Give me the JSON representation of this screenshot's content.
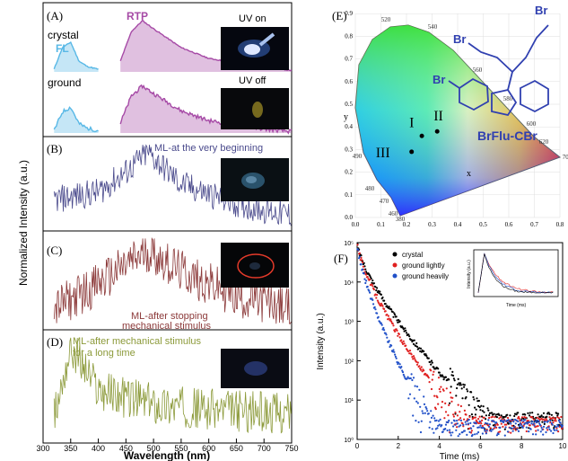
{
  "panels": {
    "A": {
      "letter": "(A)",
      "crystal": "crystal",
      "fl": "FL",
      "rtp": "RTP",
      "ground": "ground",
      "uv_on": "UV on",
      "uv_off": "UV off"
    },
    "B": {
      "letter": "(B)",
      "caption": "ML-at the very beginning"
    },
    "C": {
      "letter": "(C)",
      "caption1": "ML-after stopping",
      "caption2": "mechanical stimulus"
    },
    "D": {
      "letter": "(D)",
      "caption1": "ML-after mechanical stimulus",
      "caption2": "for a long time"
    },
    "E": {
      "letter": "(E)",
      "label_I": "I",
      "label_II": "II",
      "label_III": "III",
      "axis_x": "x",
      "axis_y": "y",
      "molecule": "BrFlu-CBr",
      "br": "Br"
    },
    "F": {
      "letter": "(F)"
    }
  },
  "colors": {
    "fl": "#58b8e6",
    "rtp": "#a64aa6",
    "B": "#4a4a8c",
    "C": "#8c3a3a",
    "D": "#8c9a3a",
    "ring": "#e43a2a",
    "crystal": "#000000",
    "ground_lightly": "#e02020",
    "ground_heavily": "#2050c8",
    "molecule": "#3040b0"
  },
  "chart_data": [
    {
      "type": "line",
      "title": "",
      "xlabel": "Wavelength (nm)",
      "ylabel": "Normalized Intensity (a.u.)",
      "xlim": [
        300,
        750
      ],
      "x_ticks": [
        "300",
        "350",
        "400",
        "450",
        "500",
        "550",
        "600",
        "650",
        "700",
        "750"
      ],
      "panels": [
        {
          "label": "(A)",
          "series": [
            {
              "name": "FL",
              "x": [
                320,
                335,
                350,
                365,
                380,
                400
              ],
              "values": [
                0.05,
                0.45,
                0.55,
                0.2,
                0.1,
                0.05
              ]
            },
            {
              "name": "RTP",
              "x": [
                440,
                460,
                480,
                500,
                550,
                600,
                700,
                750
              ],
              "values": [
                0.2,
                0.75,
                0.95,
                0.8,
                0.45,
                0.25,
                0.08,
                0.03
              ]
            }
          ]
        },
        {
          "label": "(B)",
          "series": [
            {
              "name": "ML-at the very beginning",
              "x": [
                320,
                400,
                450,
                490,
                550,
                650,
                750
              ],
              "values": [
                0.35,
                0.45,
                0.7,
                0.95,
                0.55,
                0.3,
                0.15
              ]
            }
          ]
        },
        {
          "label": "(C)",
          "series": [
            {
              "name": "ML-after stopping mechanical stimulus",
              "x": [
                320,
                400,
                490,
                550,
                650,
                750
              ],
              "values": [
                0.2,
                0.5,
                0.9,
                0.65,
                0.35,
                0.2
              ]
            }
          ]
        },
        {
          "label": "(D)",
          "series": [
            {
              "name": "ML-after mechanical stimulus for a long time",
              "x": [
                320,
                350,
                400,
                500,
                600,
                750
              ],
              "values": [
                0.2,
                0.95,
                0.5,
                0.35,
                0.3,
                0.25
              ]
            }
          ]
        }
      ]
    },
    {
      "type": "scatter",
      "title": "",
      "xlabel": "x",
      "ylabel": "y",
      "x_ticks": [
        "0.0",
        "0.1",
        "0.2",
        "0.3",
        "0.4",
        "0.5",
        "0.6",
        "0.7",
        "0.8"
      ],
      "y_ticks": [
        "0.0",
        "0.1",
        "0.2",
        "0.3",
        "0.4",
        "0.5",
        "0.6",
        "0.7",
        "0.8",
        "0.9"
      ],
      "wavelength_labels": [
        "380",
        "460",
        "470",
        "480",
        "490",
        "520",
        "540",
        "560",
        "580",
        "600",
        "620",
        "700"
      ],
      "points": [
        {
          "label": "I",
          "x": 0.26,
          "y": 0.36
        },
        {
          "label": "II",
          "x": 0.32,
          "y": 0.38
        },
        {
          "label": "III",
          "x": 0.22,
          "y": 0.29
        }
      ]
    },
    {
      "type": "scatter",
      "title": "",
      "xlabel": "Time (ms)",
      "ylabel": "Intensity (a.u.)",
      "xlim": [
        0,
        10
      ],
      "y_log": true,
      "ylim": [
        1,
        100000
      ],
      "x_ticks": [
        "0",
        "2",
        "4",
        "6",
        "8",
        "10"
      ],
      "y_ticks": [
        "10⁰",
        "10¹",
        "10²",
        "10³",
        "10⁴",
        "10⁵"
      ],
      "legend": [
        "crystal",
        "ground lightly",
        "ground heavily"
      ],
      "legend_position": "top-right",
      "series": [
        {
          "name": "crystal",
          "tau": 0.72
        },
        {
          "name": "ground lightly",
          "tau": 0.58
        },
        {
          "name": "ground heavily",
          "tau": 0.4
        }
      ],
      "inset": {
        "xlabel": "Time (ms)",
        "ylabel": "Intensity (a.u.)"
      }
    }
  ]
}
